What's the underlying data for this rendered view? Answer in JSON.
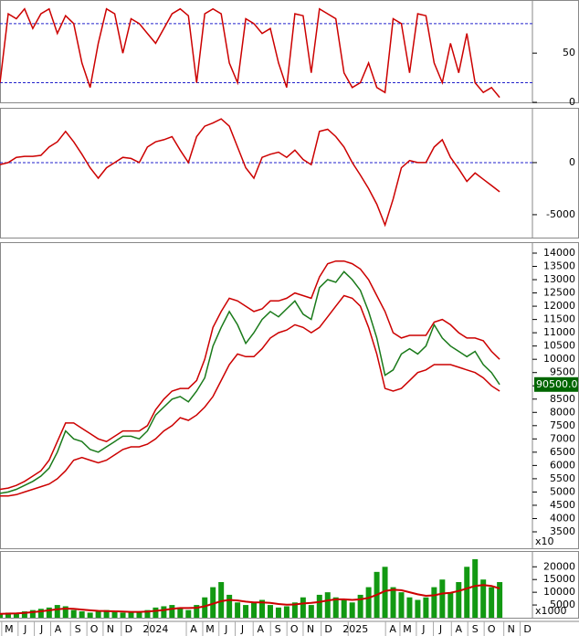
{
  "chart_data": {
    "type": "stock",
    "x": [
      0,
      0.5,
      1,
      1.5,
      2,
      2.5,
      3,
      3.5,
      4,
      4.5,
      5,
      5.5,
      6,
      6.5,
      7,
      7.5,
      8,
      8.5,
      9,
      9.5,
      10,
      10.5,
      11,
      11.5,
      12,
      12.5,
      13,
      13.5,
      14,
      14.5,
      15,
      15.5,
      16,
      16.5,
      17,
      17.5,
      18,
      18.5,
      19,
      19.5,
      20,
      20.5,
      21,
      21.5,
      22,
      22.5,
      23,
      23.5,
      24,
      24.5,
      25,
      25.5,
      26,
      26.5,
      27,
      27.5,
      28,
      28.5,
      29,
      29.5,
      30,
      30.5
    ],
    "xlim": [
      0,
      32.5
    ],
    "xticks": [
      {
        "value": 0.55,
        "label": "M"
      },
      {
        "value": 1.55,
        "label": "J"
      },
      {
        "value": 2.54,
        "label": "J"
      },
      {
        "value": 3.54,
        "label": "A"
      },
      {
        "value": 4.75,
        "label": "S"
      },
      {
        "value": 5.75,
        "label": "O"
      },
      {
        "value": 6.74,
        "label": "N"
      },
      {
        "value": 7.85,
        "label": "D"
      },
      {
        "value": 9.5,
        "label": "2024"
      },
      {
        "value": 11.82,
        "label": "A"
      },
      {
        "value": 12.82,
        "label": "M"
      },
      {
        "value": 13.81,
        "label": "J"
      },
      {
        "value": 14.8,
        "label": "J"
      },
      {
        "value": 15.9,
        "label": "A"
      },
      {
        "value": 16.96,
        "label": "S"
      },
      {
        "value": 17.96,
        "label": "O"
      },
      {
        "value": 18.95,
        "label": "N"
      },
      {
        "value": 20.05,
        "label": "D"
      },
      {
        "value": 21.7,
        "label": "2025"
      },
      {
        "value": 23.98,
        "label": "A"
      },
      {
        "value": 24.86,
        "label": "M"
      },
      {
        "value": 25.86,
        "label": "J"
      },
      {
        "value": 26.9,
        "label": "J"
      },
      {
        "value": 28.0,
        "label": "A"
      },
      {
        "value": 29.0,
        "label": "S"
      },
      {
        "value": 30.0,
        "label": "O"
      },
      {
        "value": 31.2,
        "label": "N"
      },
      {
        "value": 32.2,
        "label": "D"
      }
    ],
    "panels": [
      {
        "type": "line",
        "ylim": [
          0,
          104
        ],
        "yticks": [
          0,
          50
        ],
        "levels": [
          20,
          80
        ],
        "series": [
          {
            "color": "#cc0000",
            "values": [
              20,
              90,
              85,
              95,
              75,
              90,
              95,
              70,
              88,
              80,
              40,
              15,
              60,
              95,
              90,
              50,
              85,
              80,
              70,
              60,
              75,
              90,
              95,
              88,
              20,
              90,
              95,
              90,
              40,
              20,
              85,
              80,
              70,
              75,
              40,
              15,
              90,
              88,
              30,
              95,
              90,
              85,
              30,
              15,
              20,
              40,
              15,
              10,
              85,
              80,
              30,
              90,
              88,
              40,
              20,
              60,
              30,
              70,
              20,
              10,
              15,
              5
            ]
          }
        ]
      },
      {
        "type": "line",
        "ylim": [
          -7200,
          5260
        ],
        "yticks": [
          -5000,
          0
        ],
        "levels": [
          0
        ],
        "series": [
          {
            "color": "#cc0000",
            "values": [
              -200,
              0,
              500,
              600,
              600,
              700,
              1500,
              2000,
              3000,
              2000,
              800,
              -500,
              -1500,
              -500,
              0,
              500,
              400,
              0,
              1500,
              2000,
              2200,
              2500,
              1200,
              0,
              2500,
              3500,
              3800,
              4200,
              3500,
              1500,
              -500,
              -1500,
              500,
              800,
              1000,
              500,
              1200,
              300,
              -200,
              3000,
              3200,
              2500,
              1500,
              0,
              -1200,
              -2500,
              -4000,
              -6000,
              -3500,
              -500,
              200,
              0,
              0,
              1500,
              2200,
              500,
              -600,
              -1800,
              -1000,
              -1600,
              -2200,
              -2800
            ]
          }
        ]
      },
      {
        "type": "line",
        "ylim": [
          2880,
          14413
        ],
        "yticks": [
          3500,
          4000,
          4500,
          5000,
          5500,
          6000,
          6500,
          7000,
          7500,
          8000,
          8500,
          9000,
          9500,
          10000,
          10500,
          11000,
          11500,
          12000,
          12500,
          13000,
          13500,
          14000
        ],
        "unit": "x10",
        "last_label": "90500.0",
        "series": [
          {
            "color": "#cc0000",
            "values": [
              5100,
              5150,
              5250,
              5400,
              5600,
              5800,
              6200,
              6900,
              7600,
              7600,
              7400,
              7200,
              7000,
              6900,
              7100,
              7300,
              7300,
              7300,
              7500,
              8100,
              8500,
              8800,
              8900,
              8900,
              9200,
              10000,
              11200,
              11800,
              12300,
              12200,
              12000,
              11800,
              11900,
              12200,
              12200,
              12300,
              12500,
              12400,
              12300,
              13100,
              13600,
              13700,
              13700,
              13600,
              13400,
              13000,
              12400,
              11800,
              11000,
              10800,
              10900,
              10900,
              10900,
              11400,
              11500,
              11300,
              11000,
              10800,
              10800,
              10700,
              10300,
              10000
            ]
          },
          {
            "color": "#cc0000",
            "values": [
              4850,
              4850,
              4900,
              5000,
              5100,
              5200,
              5300,
              5500,
              5800,
              6200,
              6300,
              6200,
              6100,
              6200,
              6400,
              6600,
              6700,
              6700,
              6800,
              7000,
              7300,
              7500,
              7800,
              7700,
              7900,
              8200,
              8600,
              9200,
              9800,
              10200,
              10100,
              10100,
              10400,
              10800,
              11000,
              11100,
              11300,
              11200,
              11000,
              11200,
              11600,
              12000,
              12400,
              12300,
              12000,
              11200,
              10200,
              8900,
              8800,
              8900,
              9200,
              9500,
              9600,
              9800,
              9800,
              9800,
              9700,
              9600,
              9500,
              9300,
              9000,
              8800
            ]
          },
          {
            "color": "#1a7a1a",
            "values": [
              4950,
              5000,
              5100,
              5250,
              5400,
              5600,
              5900,
              6500,
              7300,
              7000,
              6900,
              6600,
              6500,
              6700,
              6900,
              7100,
              7100,
              7000,
              7300,
              7900,
              8200,
              8500,
              8600,
              8400,
              8800,
              9300,
              10500,
              11200,
              11800,
              11300,
              10600,
              11000,
              11500,
              11800,
              11600,
              11900,
              12200,
              11700,
              11500,
              12700,
              13000,
              12900,
              13300,
              13000,
              12600,
              11800,
              10800,
              9400,
              9600,
              10200,
              10400,
              10200,
              10500,
              11300,
              10800,
              10500,
              10300,
              10100,
              10300,
              9800,
              9500,
              9050
            ]
          }
        ]
      },
      {
        "type": "bar",
        "ylim": [
          0,
          26200
        ],
        "yticks": [
          5000,
          10000,
          15000,
          20000
        ],
        "unit": "x1000",
        "values": [
          1500,
          2000,
          1800,
          2500,
          3000,
          3500,
          4000,
          5000,
          4500,
          3000,
          2500,
          2000,
          2500,
          3000,
          2500,
          2000,
          2500,
          2000,
          3000,
          4000,
          4500,
          5000,
          4000,
          3000,
          5000,
          8000,
          12000,
          14000,
          9000,
          6000,
          5000,
          6000,
          7000,
          5000,
          4000,
          4500,
          6000,
          8000,
          5000,
          9000,
          10000,
          8000,
          7000,
          6000,
          9000,
          12000,
          18000,
          20000,
          12000,
          10000,
          8000,
          7000,
          8000,
          12000,
          15000,
          10000,
          14000,
          20000,
          23000,
          15000,
          12000,
          14000
        ],
        "color": "#129912",
        "series": [
          {
            "color": "#cc0000",
            "values": [
              1500,
              1600,
              1700,
              1900,
              2200,
              2500,
              2900,
              3300,
              3600,
              3500,
              3200,
              2900,
              2700,
              2600,
              2500,
              2400,
              2300,
              2300,
              2400,
              2700,
              3000,
              3500,
              3800,
              3800,
              3900,
              4500,
              5500,
              6500,
              7000,
              6800,
              6300,
              6000,
              6000,
              5800,
              5400,
              5100,
              5200,
              5600,
              5800,
              6200,
              6800,
              7200,
              7200,
              7000,
              7200,
              7800,
              9000,
              10500,
              11000,
              10800,
              10000,
              9200,
              8600,
              8800,
              9500,
              9800,
              10500,
              11500,
              12500,
              12800,
              12500,
              11500
            ]
          }
        ]
      }
    ]
  }
}
